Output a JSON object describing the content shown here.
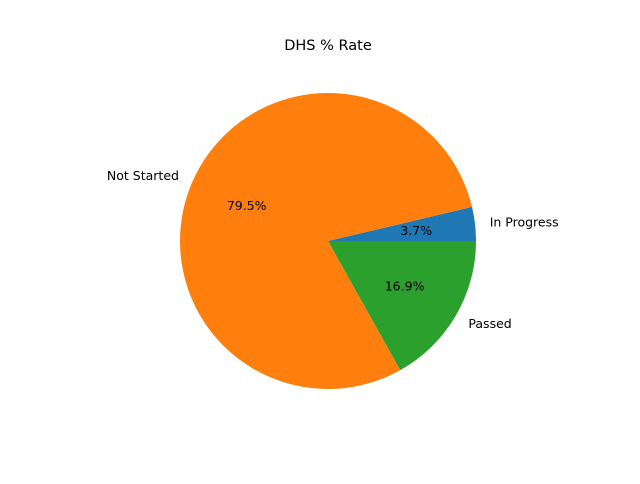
{
  "chart_data": {
    "type": "pie",
    "title": "DHS % Rate",
    "categories": [
      "In Progress",
      "Not Started",
      "Passed"
    ],
    "values": [
      3.7,
      79.5,
      16.9
    ],
    "value_labels": [
      "3.7%",
      "79.5%",
      "16.9%"
    ],
    "colors": [
      "#1f77b4",
      "#ff7f0e",
      "#2ca02c"
    ],
    "start_angle_deg": 0,
    "direction": "counterclockwise",
    "legend": "none"
  }
}
